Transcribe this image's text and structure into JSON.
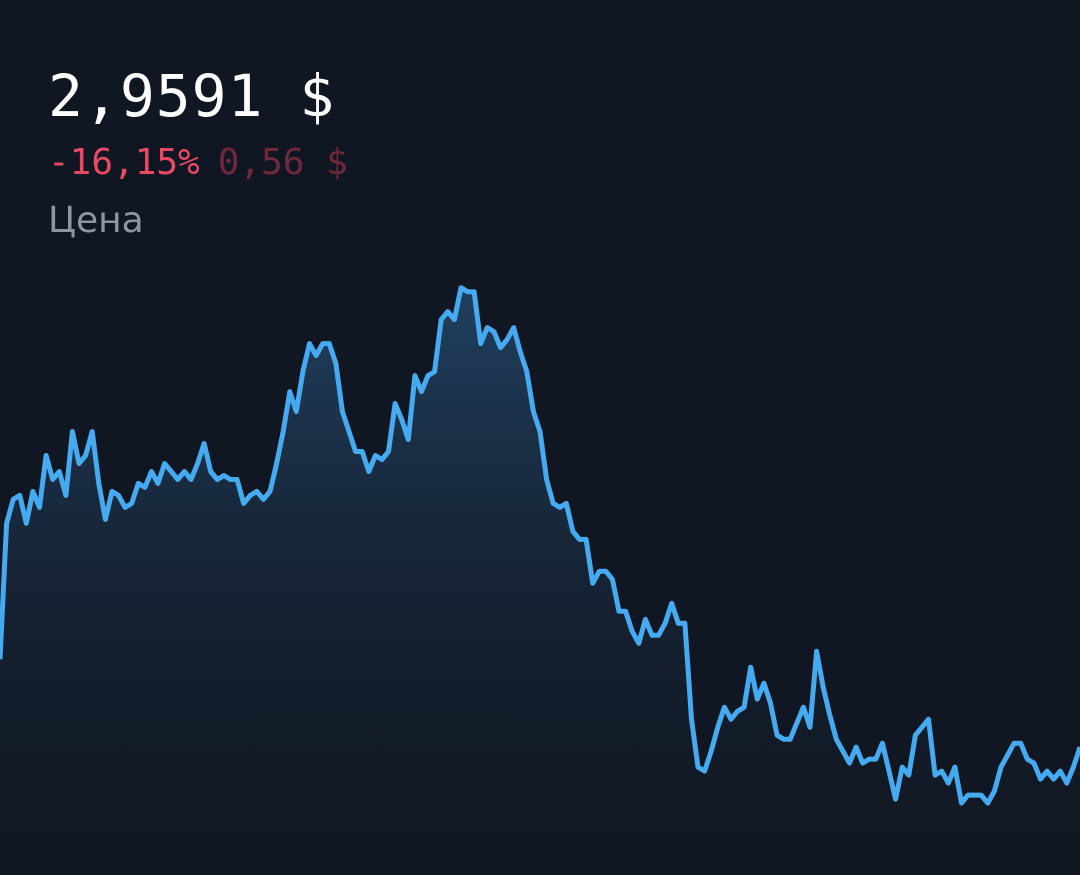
{
  "header": {
    "price": "2,9591 $",
    "change_percent": "-16,15%",
    "change_value": "0,56 $",
    "label": "Цена"
  },
  "chart_data": {
    "type": "line",
    "color": "#45aaf0",
    "fill": true,
    "ylim": [
      2.64,
      4.83
    ],
    "values": [
      3.18,
      3.52,
      3.58,
      3.59,
      3.52,
      3.6,
      3.56,
      3.69,
      3.63,
      3.65,
      3.59,
      3.75,
      3.67,
      3.69,
      3.75,
      3.62,
      3.53,
      3.6,
      3.59,
      3.56,
      3.57,
      3.62,
      3.61,
      3.65,
      3.62,
      3.67,
      3.65,
      3.63,
      3.65,
      3.63,
      3.67,
      3.72,
      3.65,
      3.63,
      3.64,
      3.63,
      3.63,
      3.57,
      3.59,
      3.6,
      3.58,
      3.6,
      3.67,
      3.75,
      3.85,
      3.8,
      3.9,
      3.97,
      3.94,
      3.97,
      3.97,
      3.92,
      3.8,
      3.75,
      3.7,
      3.7,
      3.65,
      3.69,
      3.68,
      3.7,
      3.82,
      3.78,
      3.73,
      3.89,
      3.85,
      3.89,
      3.9,
      4.03,
      4.05,
      4.03,
      4.11,
      4.1,
      4.1,
      3.97,
      4.01,
      4.0,
      3.96,
      3.98,
      4.01,
      3.95,
      3.9,
      3.8,
      3.75,
      3.63,
      3.57,
      3.56,
      3.57,
      3.5,
      3.48,
      3.48,
      3.37,
      3.4,
      3.4,
      3.38,
      3.3,
      3.3,
      3.25,
      3.22,
      3.28,
      3.24,
      3.24,
      3.27,
      3.32,
      3.27,
      3.27,
      3.03,
      2.91,
      2.9,
      2.95,
      3.01,
      3.06,
      3.03,
      3.05,
      3.06,
      3.16,
      3.08,
      3.12,
      3.07,
      2.99,
      2.98,
      2.98,
      3.02,
      3.06,
      3.01,
      3.2,
      3.11,
      3.04,
      2.98,
      2.95,
      2.92,
      2.96,
      2.92,
      2.93,
      2.93,
      2.97,
      2.9,
      2.83,
      2.91,
      2.89,
      2.99,
      3.01,
      3.03,
      2.89,
      2.9,
      2.87,
      2.91,
      2.82,
      2.84,
      2.84,
      2.84,
      2.82,
      2.85,
      2.91,
      2.94,
      2.97,
      2.97,
      2.93,
      2.92,
      2.88,
      2.9,
      2.88,
      2.9,
      2.87,
      2.91,
      2.96
    ]
  }
}
